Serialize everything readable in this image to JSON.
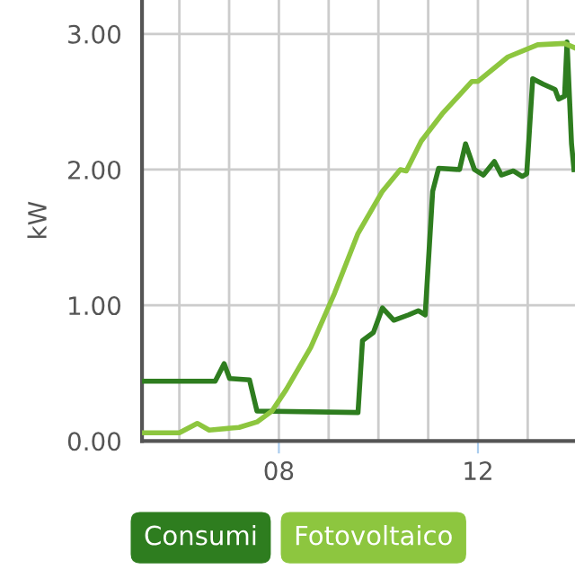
{
  "chart_data": {
    "type": "line",
    "ylabel": "kW",
    "xlim": [
      5.25,
      13.95
    ],
    "xticks": [
      {
        "value": 6,
        "label": null
      },
      {
        "value": 7,
        "label": null
      },
      {
        "value": 8,
        "label": "08"
      },
      {
        "value": 9,
        "label": null
      },
      {
        "value": 10,
        "label": null
      },
      {
        "value": 11,
        "label": null
      },
      {
        "value": 12,
        "label": "12"
      },
      {
        "value": 13,
        "label": null
      }
    ],
    "ylim": [
      0,
      3.25
    ],
    "yticks": [
      {
        "value": 0,
        "label": "0.00"
      },
      {
        "value": 1,
        "label": "1.00"
      },
      {
        "value": 2,
        "label": "2.00"
      },
      {
        "value": 3,
        "label": "3.00"
      }
    ],
    "grid": true,
    "legend": "bottom",
    "marker": "none",
    "line_style": "solid",
    "series": [
      {
        "name": "Consumi",
        "color": "#2e7d1f",
        "x": [
          5.28,
          6.72,
          6.9,
          7.01,
          7.41,
          7.56,
          9.59,
          9.68,
          9.9,
          10.08,
          10.31,
          10.61,
          10.8,
          10.94,
          11.09,
          11.21,
          11.63,
          11.75,
          11.93,
          12.11,
          12.33,
          12.47,
          12.71,
          12.89,
          12.98,
          13.1,
          13.31,
          13.55,
          13.62,
          13.74,
          13.79,
          13.88,
          13.93
        ],
        "values": [
          0.44,
          0.44,
          0.57,
          0.46,
          0.45,
          0.22,
          0.21,
          0.74,
          0.8,
          0.98,
          0.89,
          0.93,
          0.96,
          0.93,
          1.84,
          2.01,
          2.0,
          2.19,
          2.0,
          1.96,
          2.06,
          1.96,
          1.99,
          1.95,
          1.97,
          2.67,
          2.63,
          2.59,
          2.52,
          2.54,
          2.94,
          2.19,
          2.0
        ]
      },
      {
        "name": "Fotovoltaico",
        "color": "#8dc63f",
        "x": [
          5.28,
          6.0,
          6.36,
          6.6,
          7.2,
          7.56,
          7.86,
          8.15,
          8.64,
          9.12,
          9.59,
          10.08,
          10.44,
          10.56,
          10.86,
          11.28,
          11.88,
          12.0,
          12.6,
          13.2,
          13.74,
          13.93
        ],
        "values": [
          0.06,
          0.06,
          0.13,
          0.08,
          0.1,
          0.14,
          0.22,
          0.38,
          0.69,
          1.09,
          1.53,
          1.84,
          2.0,
          1.99,
          2.21,
          2.41,
          2.65,
          2.65,
          2.83,
          2.92,
          2.93,
          2.9
        ]
      }
    ]
  }
}
